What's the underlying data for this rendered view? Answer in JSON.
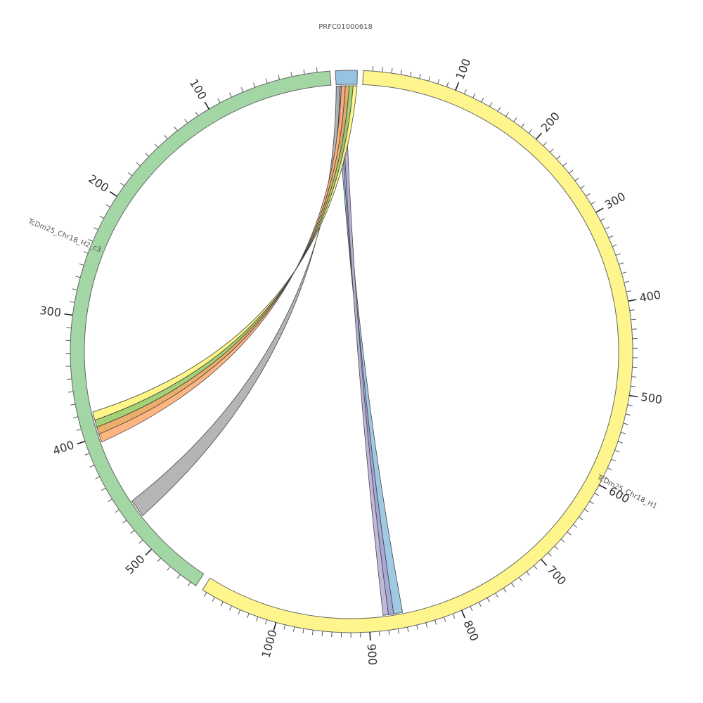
{
  "chart_data": {
    "type": "chord",
    "segments": [
      {
        "name": "TcDm25_Chr18_H1",
        "start": 0,
        "end": 1085,
        "color": "#FEF58C",
        "major_tick_labels": [
          "100",
          "200",
          "300",
          "400",
          "500",
          "600",
          "700",
          "800",
          "900",
          "1000"
        ]
      },
      {
        "name": "TcDm25_Chr18_H2_c3",
        "start": 0,
        "end": 545,
        "color": "#A2D6A4",
        "major_tick_labels": [
          "100",
          "200",
          "300",
          "400",
          "500"
        ]
      },
      {
        "name": "PRFC01000618",
        "start": 0,
        "end": 16,
        "color": "#96C3E1",
        "major_tick_labels": []
      }
    ],
    "links": [
      {
        "from": "PRFC01000618",
        "from_range": [
          0,
          3
        ],
        "to": "TcDm25_Chr18_H1",
        "to_range": [
          862,
          872
        ],
        "color": "#96C3E1"
      },
      {
        "from": "PRFC01000618",
        "from_range": [
          2,
          5
        ],
        "to": "TcDm25_Chr18_H1",
        "to_range": [
          872,
          878
        ],
        "color": "#9DA0D0"
      },
      {
        "from": "PRFC01000618",
        "from_range": [
          4,
          7
        ],
        "to": "TcDm25_Chr18_H1",
        "to_range": [
          878,
          884
        ],
        "color": "#BAB0D8"
      },
      {
        "from": "PRFC01000618",
        "from_range": [
          0,
          3
        ],
        "to": "TcDm25_Chr18_H2_c3",
        "to_range": [
          460,
          475
        ],
        "color": "#ADADAD"
      },
      {
        "from": "PRFC01000618",
        "from_range": [
          4,
          7
        ],
        "to": "TcDm25_Chr18_H2_c3",
        "to_range": [
          398,
          405
        ],
        "color": "#FFAD73"
      },
      {
        "from": "PRFC01000618",
        "from_range": [
          7,
          10
        ],
        "to": "TcDm25_Chr18_H2_c3",
        "to_range": [
          392,
          398
        ],
        "color": "#E9A65B"
      },
      {
        "from": "PRFC01000618",
        "from_range": [
          10,
          13
        ],
        "to": "TcDm25_Chr18_H2_c3",
        "to_range": [
          386,
          392
        ],
        "color": "#99CC66"
      },
      {
        "from": "PRFC01000618",
        "from_range": [
          13,
          16
        ],
        "to": "TcDm25_Chr18_H2_c3",
        "to_range": [
          379,
          386
        ],
        "color": "#FFF57A"
      }
    ]
  }
}
